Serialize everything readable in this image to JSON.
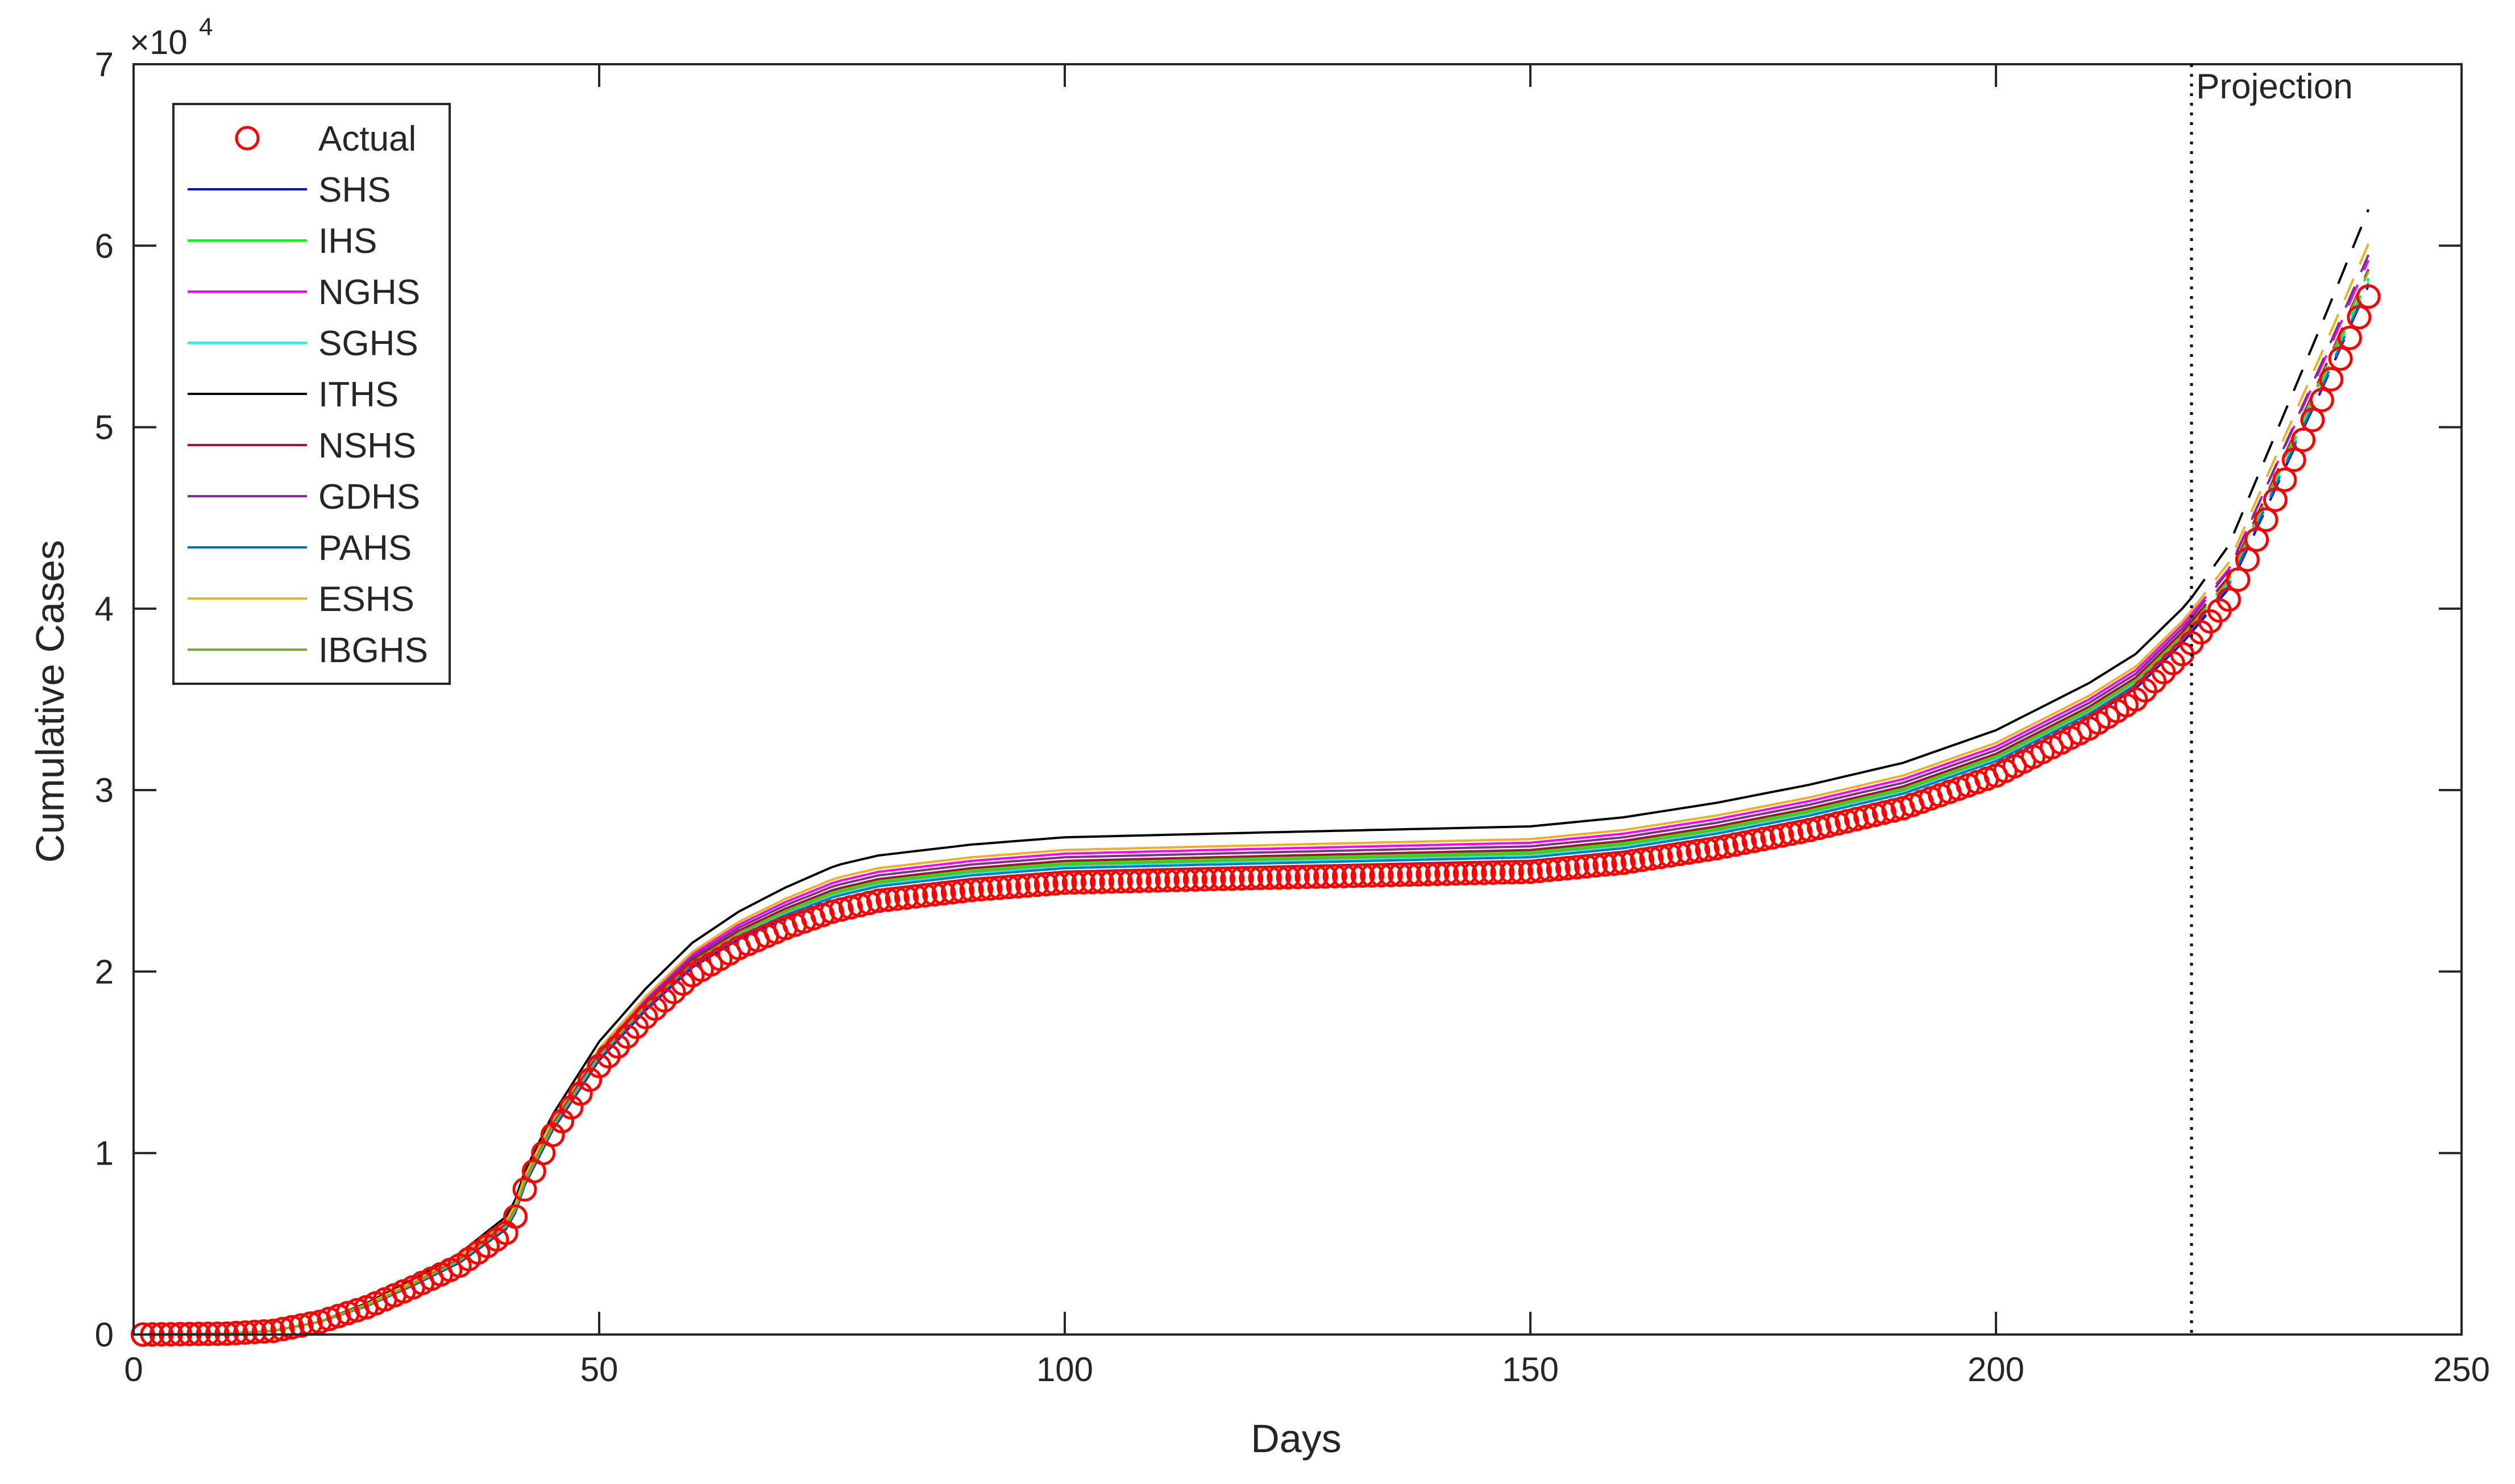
{
  "chart_data": {
    "type": "line",
    "xlabel": "Days",
    "ylabel": "Cumulative Cases",
    "y_exponent_label": "×10",
    "y_exponent_power": "4",
    "xlim": [
      0,
      250
    ],
    "ylim": [
      0,
      70000
    ],
    "xticks": [
      0,
      50,
      100,
      150,
      200,
      250
    ],
    "yticks": [
      0,
      10000,
      20000,
      30000,
      40000,
      50000,
      60000,
      70000
    ],
    "yticklabels": [
      "0",
      "1",
      "2",
      "3",
      "4",
      "5",
      "6",
      "7"
    ],
    "grid": false,
    "legend_position": "top-left",
    "projection_start_day": 221,
    "projection_label": "Projection",
    "actual": {
      "name": "Actual",
      "color": "#ff0000",
      "marker": "circle",
      "x_range": [
        1,
        240
      ],
      "anchors": [
        [
          1,
          0
        ],
        [
          10,
          50
        ],
        [
          15,
          200
        ],
        [
          20,
          700
        ],
        [
          25,
          1500
        ],
        [
          30,
          2600
        ],
        [
          35,
          3800
        ],
        [
          40,
          5600
        ],
        [
          41,
          6500
        ],
        [
          42,
          8000
        ],
        [
          45,
          11000
        ],
        [
          50,
          14800
        ],
        [
          55,
          17500
        ],
        [
          60,
          19800
        ],
        [
          65,
          21300
        ],
        [
          70,
          22400
        ],
        [
          75,
          23300
        ],
        [
          80,
          23900
        ],
        [
          90,
          24500
        ],
        [
          100,
          24900
        ],
        [
          120,
          25150
        ],
        [
          150,
          25500
        ],
        [
          160,
          26000
        ],
        [
          170,
          26800
        ],
        [
          180,
          27800
        ],
        [
          190,
          29000
        ],
        [
          200,
          30800
        ],
        [
          210,
          33400
        ],
        [
          215,
          35000
        ],
        [
          220,
          37500
        ],
        [
          225,
          40500
        ],
        [
          230,
          46000
        ],
        [
          235,
          51500
        ],
        [
          240,
          57200
        ]
      ]
    },
    "series": [
      {
        "name": "SHS",
        "color": "#0000ff",
        "offset": 600,
        "end_value": 57800
      },
      {
        "name": "IHS",
        "color": "#00ff00",
        "offset": 1100,
        "end_value": 58200
      },
      {
        "name": "NGHS",
        "color": "#ff00ff",
        "offset": 1600,
        "end_value": 59200
      },
      {
        "name": "SGHS",
        "color": "#00ffff",
        "offset": 900,
        "end_value": 58000
      },
      {
        "name": "ITHS",
        "color": "#000000",
        "offset": 2500,
        "end_value": 62000
      },
      {
        "name": "NSHS",
        "color": "#a2142f",
        "offset": 1200,
        "end_value": 58700
      },
      {
        "name": "GDHS",
        "color": "#7e2f8e",
        "offset": 1400,
        "end_value": 59500
      },
      {
        "name": "PAHS",
        "color": "#0072bd",
        "offset": 800,
        "end_value": 57900
      },
      {
        "name": "ESHS",
        "color": "#edb120",
        "offset": 1800,
        "end_value": 60100
      },
      {
        "name": "IBGHS",
        "color": "#77ac30",
        "offset": 1000,
        "end_value": 58600
      }
    ]
  }
}
